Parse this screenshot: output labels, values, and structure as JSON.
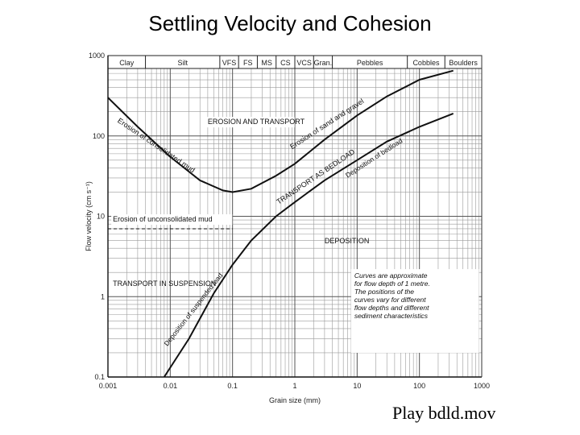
{
  "slide": {
    "title": "Settling Velocity and Cohesion",
    "play_link": "Play bdld.mov"
  },
  "chart_data": {
    "type": "line",
    "title": "Settling Velocity and Cohesion",
    "xlabel": "Grain size (mm)",
    "ylabel": "Flow velocity (cm s⁻¹)",
    "x_scale": "log",
    "y_scale": "log",
    "xlim": [
      0.001,
      1000
    ],
    "ylim": [
      0.1,
      1000
    ],
    "x_ticks": [
      {
        "value": 0.001,
        "label": "0.001"
      },
      {
        "value": 0.01,
        "label": "0.01"
      },
      {
        "value": 0.1,
        "label": "0.1"
      },
      {
        "value": 1,
        "label": "1"
      },
      {
        "value": 10,
        "label": "10"
      },
      {
        "value": 100,
        "label": "100"
      },
      {
        "value": 1000,
        "label": "1000"
      }
    ],
    "y_ticks": [
      {
        "value": 0.1,
        "label": "0.1"
      },
      {
        "value": 1,
        "label": "1"
      },
      {
        "value": 10,
        "label": "10"
      },
      {
        "value": 100,
        "label": "100"
      },
      {
        "value": 1000,
        "label": "1000"
      }
    ],
    "size_classes": [
      {
        "label": "Clay",
        "from": 0.001,
        "to": 0.004
      },
      {
        "label": "Silt",
        "from": 0.004,
        "to": 0.0625
      },
      {
        "label": "VFS",
        "from": 0.0625,
        "to": 0.125
      },
      {
        "label": "FS",
        "from": 0.125,
        "to": 0.25
      },
      {
        "label": "MS",
        "from": 0.25,
        "to": 0.5
      },
      {
        "label": "CS",
        "from": 0.5,
        "to": 1
      },
      {
        "label": "VCS",
        "from": 1,
        "to": 2
      },
      {
        "label": "Gran.",
        "from": 2,
        "to": 4
      },
      {
        "label": "Pebbles",
        "from": 4,
        "to": 64
      },
      {
        "label": "Cobbles",
        "from": 64,
        "to": 256
      },
      {
        "label": "Boulders",
        "from": 256,
        "to": 1000
      }
    ],
    "series": [
      {
        "name": "Erosion curve",
        "points": [
          [
            0.001,
            300
          ],
          [
            0.003,
            130
          ],
          [
            0.01,
            55
          ],
          [
            0.03,
            28
          ],
          [
            0.07,
            21
          ],
          [
            0.1,
            20
          ],
          [
            0.2,
            22
          ],
          [
            0.5,
            32
          ],
          [
            1,
            45
          ],
          [
            3,
            90
          ],
          [
            10,
            180
          ],
          [
            30,
            310
          ],
          [
            100,
            500
          ],
          [
            350,
            650
          ]
        ]
      },
      {
        "name": "Deposition curve",
        "points": [
          [
            0.008,
            0.1
          ],
          [
            0.02,
            0.3
          ],
          [
            0.05,
            1.1
          ],
          [
            0.1,
            2.5
          ],
          [
            0.2,
            5
          ],
          [
            0.5,
            10
          ],
          [
            1,
            15
          ],
          [
            3,
            28
          ],
          [
            10,
            50
          ],
          [
            30,
            85
          ],
          [
            100,
            130
          ],
          [
            350,
            190
          ]
        ]
      },
      {
        "name": "Erosion of unconsolidated mud",
        "style": "dashed",
        "points": [
          [
            0.001,
            7
          ],
          [
            0.01,
            7
          ],
          [
            0.1,
            7
          ]
        ]
      }
    ],
    "annotations": [
      {
        "text": "Erosion of consolidated mud",
        "curve": "Erosion curve"
      },
      {
        "text": "EROSION AND TRANSPORT"
      },
      {
        "text": "Erosion of sand and gravel",
        "curve": "Erosion curve"
      },
      {
        "text": "TRANSPORT AS BEDLOAD"
      },
      {
        "text": "Deposition of bedload",
        "curve": "Deposition curve"
      },
      {
        "text": "Erosion of unconsolidated mud"
      },
      {
        "text": "DEPOSITION"
      },
      {
        "text": "TRANSPORT IN SUSPENSION"
      },
      {
        "text": "Deposition of suspended load",
        "curve": "Deposition curve"
      }
    ],
    "note_lines": [
      "Curves are approximate",
      "for flow depth of 1 metre.",
      "The positions of the",
      "curves vary for different",
      "flow depths and different",
      "sediment characteristics"
    ]
  }
}
